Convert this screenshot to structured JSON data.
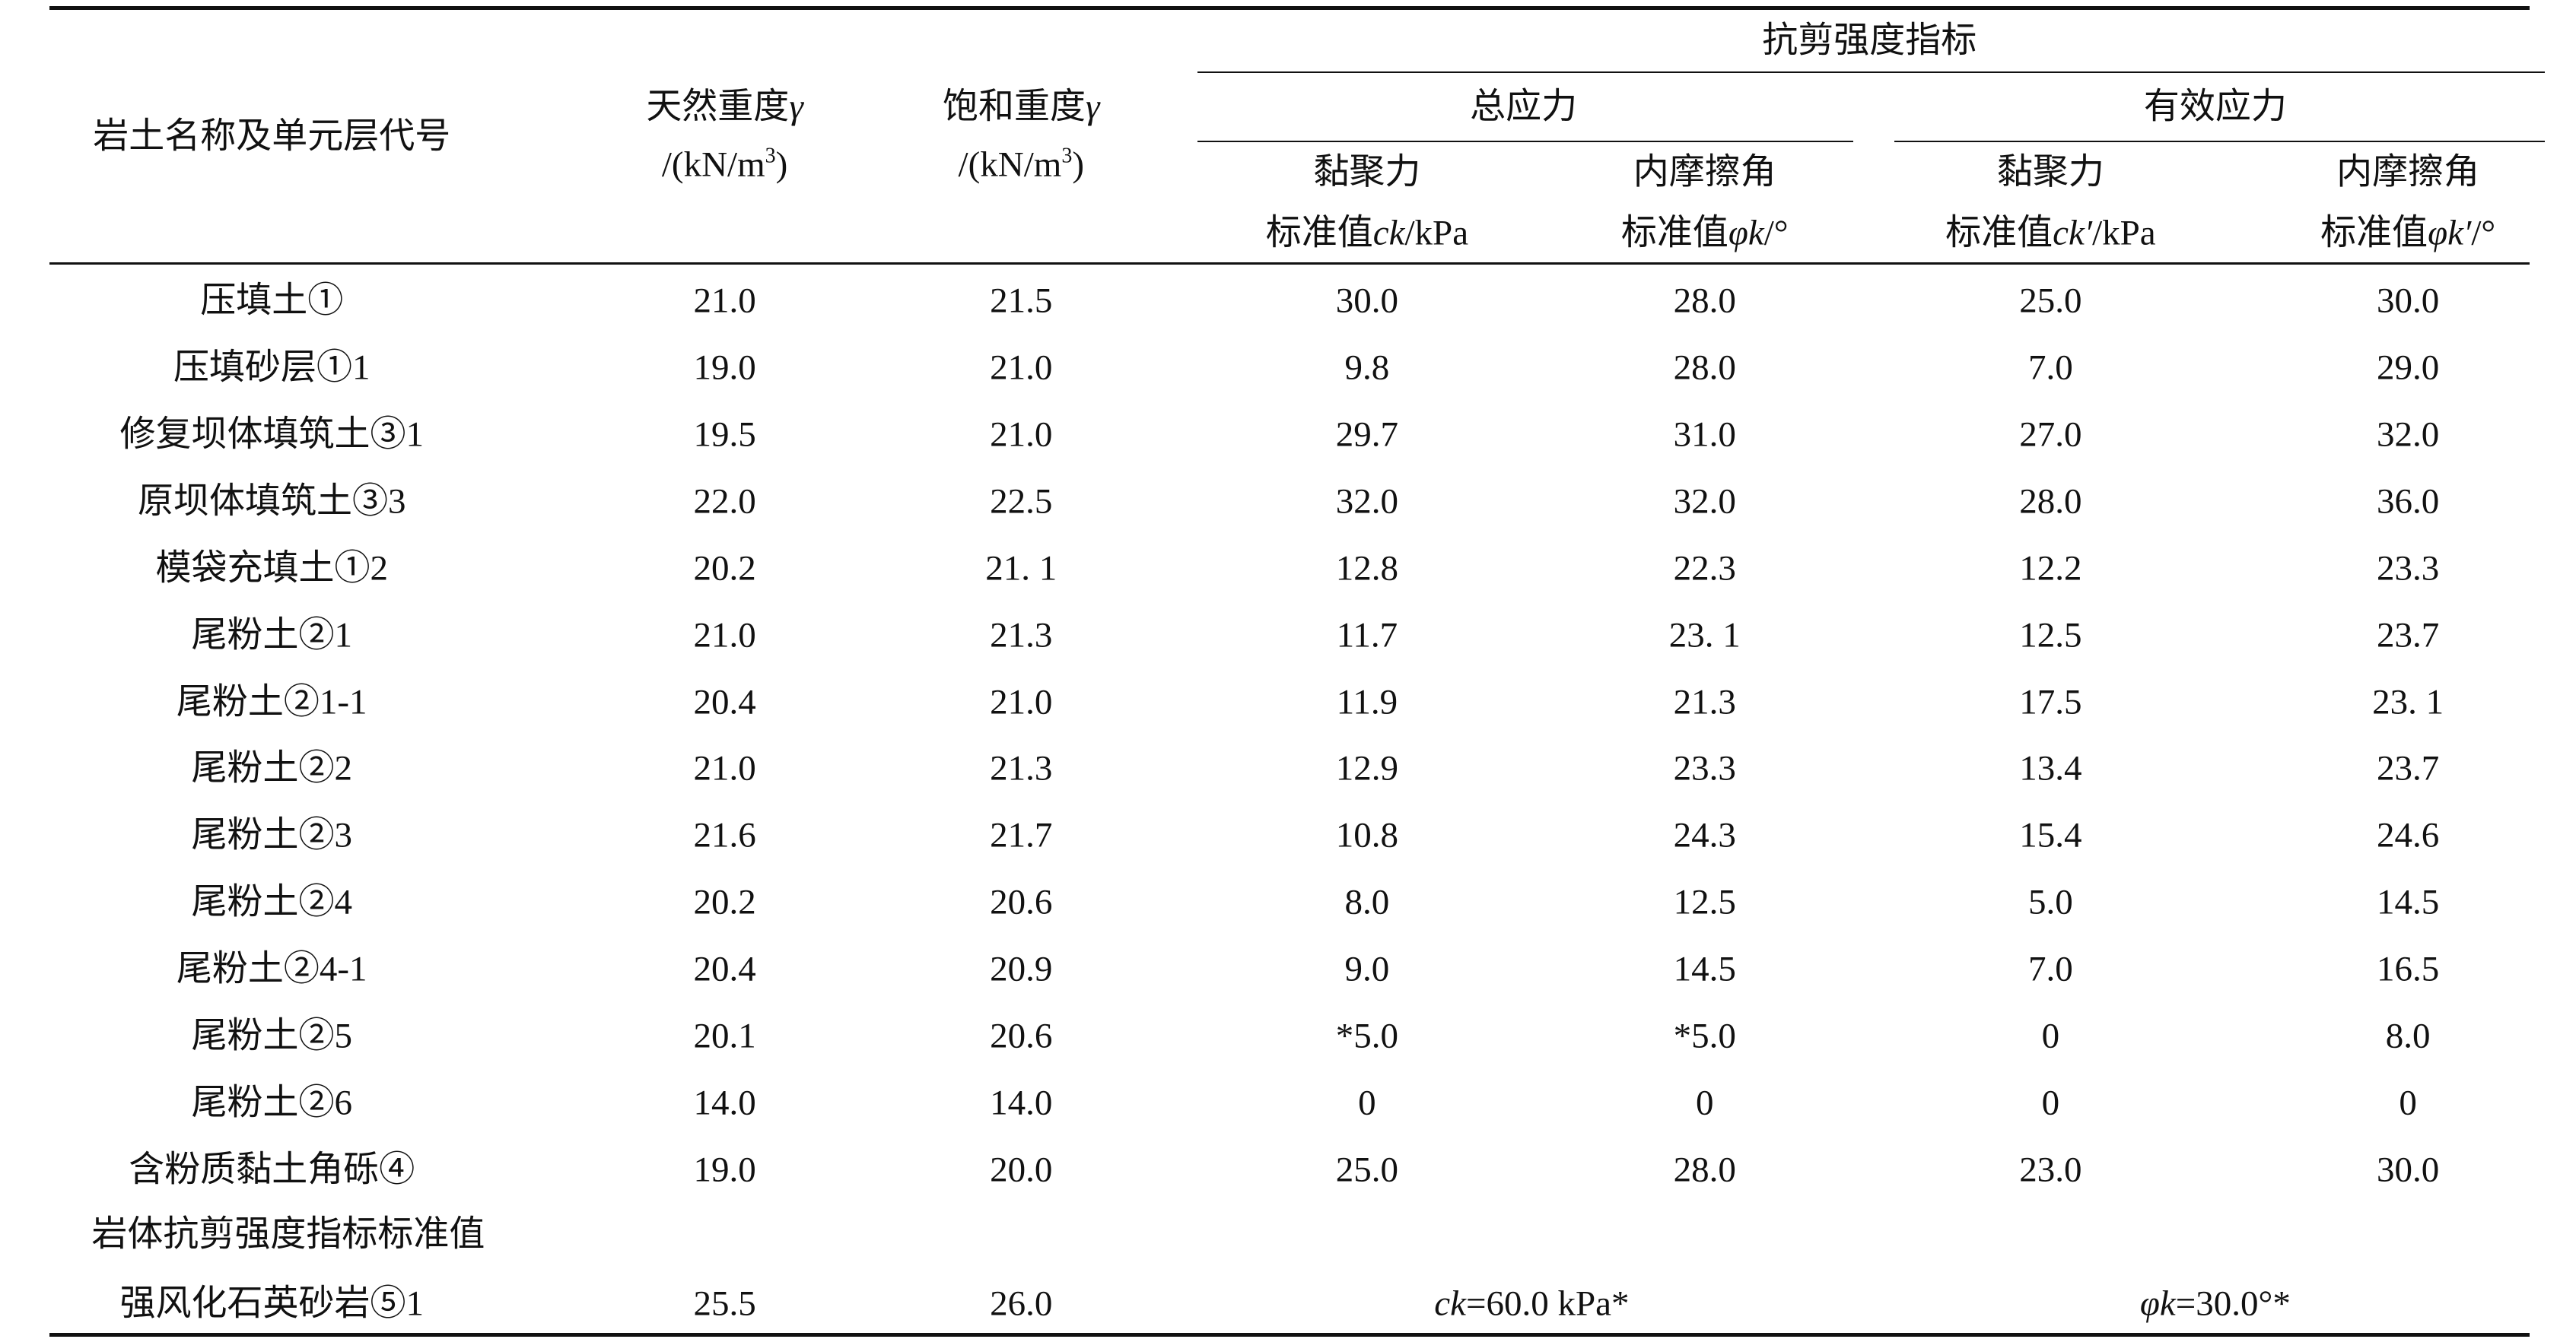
{
  "header": {
    "group": "抗剪强度指标",
    "total": "总应力",
    "effective": "有效应力",
    "columns": [
      [
        [
          {
            "text": "岩土名称及单元层代号"
          }
        ]
      ],
      [
        [
          {
            "text": "天然重度"
          },
          {
            "text": "γ",
            "style": "italic"
          }
        ],
        [
          {
            "text": "/(kN/m"
          },
          {
            "text": "3",
            "style": "sup"
          },
          {
            "text": ")"
          }
        ]
      ],
      [
        [
          {
            "text": "饱和重度"
          },
          {
            "text": "γ",
            "style": "italic"
          }
        ],
        [
          {
            "text": "/(kN/m"
          },
          {
            "text": "3",
            "style": "sup"
          },
          {
            "text": ")"
          }
        ]
      ],
      [
        [
          {
            "text": "黏聚力"
          }
        ],
        [
          {
            "text": "标准值"
          },
          {
            "text": "ck",
            "style": "italic"
          },
          {
            "text": "/kPa"
          }
        ]
      ],
      [
        [
          {
            "text": "内摩擦角"
          }
        ],
        [
          {
            "text": "标准值"
          },
          {
            "text": "φk",
            "style": "italic"
          },
          {
            "text": "/°"
          }
        ]
      ],
      [
        [
          {
            "text": "黏聚力"
          }
        ],
        [
          {
            "text": "标准值"
          },
          {
            "text": "ck′",
            "style": "italic"
          },
          {
            "text": "/kPa"
          }
        ]
      ],
      [
        [
          {
            "text": "内摩擦角"
          }
        ],
        [
          {
            "text": "标准值"
          },
          {
            "text": "φk′",
            "style": "italic"
          },
          {
            "text": "/°"
          }
        ]
      ]
    ]
  },
  "table": {
    "rows": [
      [
        "压填土①",
        "21.0",
        "21.5",
        "30.0",
        "28.0",
        "25.0",
        "30.0"
      ],
      [
        "压填砂层①1",
        "19.0",
        "21.0",
        "9.8",
        "28.0",
        "7.0",
        "29.0"
      ],
      [
        "修复坝体填筑土③1",
        "19.5",
        "21.0",
        "29.7",
        "31.0",
        "27.0",
        "32.0"
      ],
      [
        "原坝体填筑土③3",
        "22.0",
        "22.5",
        "32.0",
        "32.0",
        "28.0",
        "36.0"
      ],
      [
        "模袋充填土①2",
        "20.2",
        "21. 1",
        "12.8",
        "22.3",
        "12.2",
        "23.3"
      ],
      [
        "尾粉土②1",
        "21.0",
        "21.3",
        "11.7",
        "23. 1",
        "12.5",
        "23.7"
      ],
      [
        "尾粉土②1-1",
        "20.4",
        "21.0",
        "11.9",
        "21.3",
        "17.5",
        "23. 1"
      ],
      [
        "尾粉土②2",
        "21.0",
        "21.3",
        "12.9",
        "23.3",
        "13.4",
        "23.7"
      ],
      [
        "尾粉土②3",
        "21.6",
        "21.7",
        "10.8",
        "24.3",
        "15.4",
        "24.6"
      ],
      [
        "尾粉土②4",
        "20.2",
        "20.6",
        "8.0",
        "12.5",
        "5.0",
        "14.5"
      ],
      [
        "尾粉土②4-1",
        "20.4",
        "20.9",
        "9.0",
        "14.5",
        "7.0",
        "16.5"
      ],
      [
        "尾粉土②5",
        "20.1",
        "20.6",
        "*5.0",
        "*5.0",
        "0",
        "8.0"
      ],
      [
        "尾粉土②6",
        "14.0",
        "14.0",
        "0",
        "0",
        "0",
        "0"
      ],
      [
        "含粉质黏土角砾④",
        "19.0",
        "20.0",
        "25.0",
        "28.0",
        "23.0",
        "30.0"
      ]
    ],
    "section": "岩体抗剪强度指标标准值",
    "last_row": {
      "cells": [
        "强风化石英砂岩⑤1",
        "25.5",
        "26.0"
      ],
      "total": [
        {
          "text": "ck",
          "style": "italic"
        },
        {
          "text": "=60.0 kPa*"
        }
      ],
      "effective": [
        {
          "text": "φk",
          "style": "italic"
        },
        {
          "text": "=30.0°*"
        }
      ]
    }
  }
}
